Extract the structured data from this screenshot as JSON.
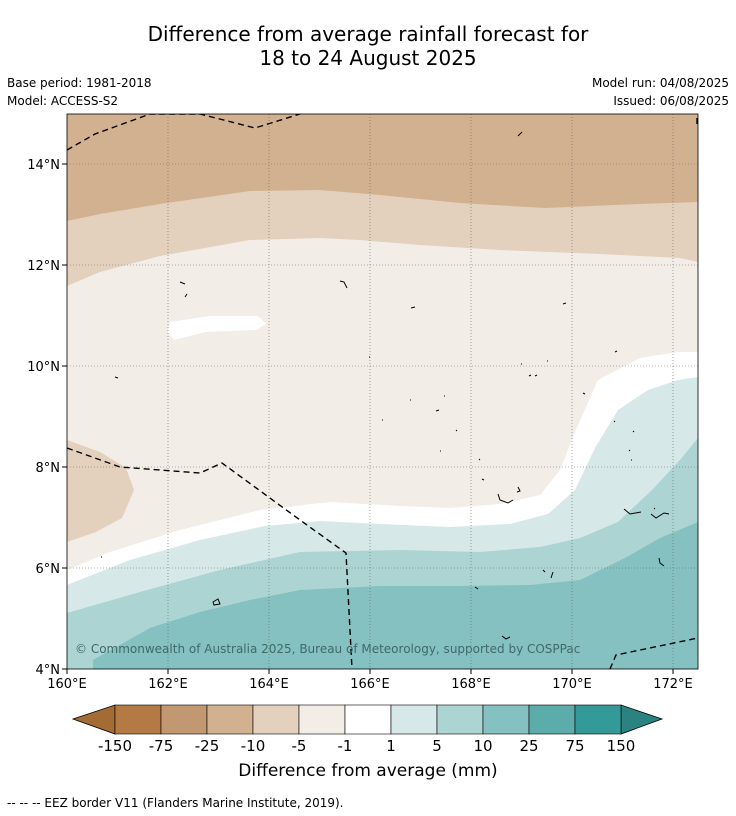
{
  "title": {
    "line1": "Difference from average rainfall forecast for",
    "line2": "18 to 24 August 2025"
  },
  "info": {
    "base_period": "Base period: 1981-2018",
    "model": "Model: ACCESS-S2",
    "model_run": "Model run: 04/08/2025",
    "issued": "Issued: 06/08/2025"
  },
  "map": {
    "copyright": "© Commonwealth of Australia 2025, Bureau of Meteorology, supported by COSPPac",
    "x_ticks": [
      "160°E",
      "162°E",
      "164°E",
      "166°E",
      "168°E",
      "170°E",
      "172°E"
    ],
    "y_ticks": [
      "14°N",
      "12°N",
      "10°N",
      "8°N",
      "6°N",
      "4°N"
    ],
    "lon_range": [
      160,
      172.5
    ],
    "lat_range": [
      4,
      15.1
    ],
    "grid": true
  },
  "legend": {
    "title": "Difference from average (mm)",
    "labels": [
      "-150",
      "-75",
      "-25",
      "-10",
      "-5",
      "-1",
      "1",
      "5",
      "10",
      "25",
      "75",
      "150"
    ],
    "colors": [
      "#a56b34",
      "#b47a43",
      "#c29873",
      "#d2b191",
      "#e3d0bd",
      "#f3ede8",
      "#ffffff",
      "#d6e8e7",
      "#acd4d3",
      "#84c1c0",
      "#5bacab",
      "#349a98",
      "#2a8281"
    ]
  },
  "footnote": "--  --  -- EEZ border V11 (Flanders Marine Institute, 2019)."
}
